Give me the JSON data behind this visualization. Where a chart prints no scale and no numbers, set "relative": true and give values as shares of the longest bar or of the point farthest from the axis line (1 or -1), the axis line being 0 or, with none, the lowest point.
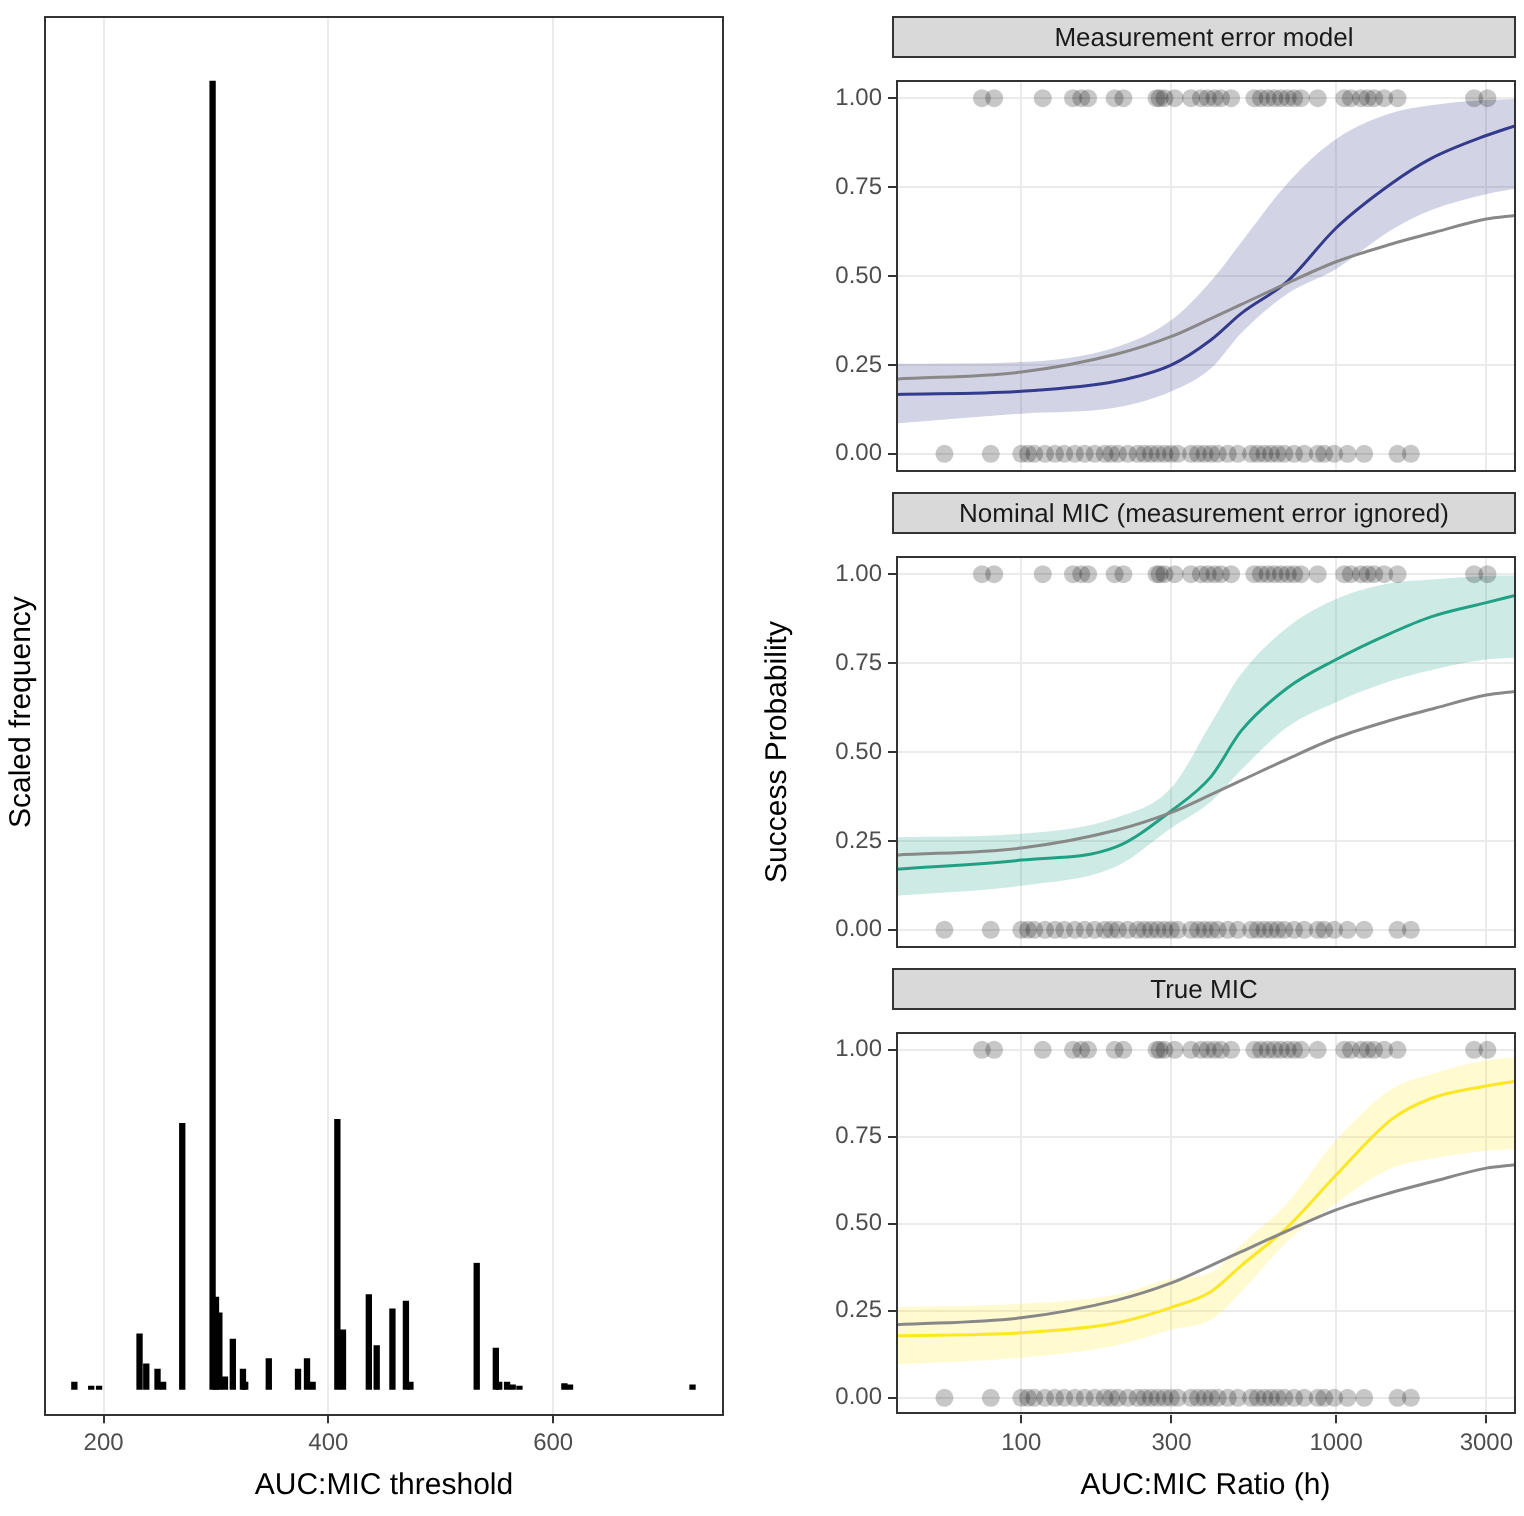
{
  "chart_data": [
    {
      "type": "bar",
      "xlabel": "AUC:MIC threshold",
      "ylabel": "Scaled frequency",
      "relative": true,
      "color": "#000000",
      "grid": "x",
      "xlim": [
        147,
        752
      ],
      "xticks": [
        200,
        400,
        600
      ],
      "x": [
        174,
        189,
        196,
        232,
        238,
        248,
        253,
        270,
        297,
        300,
        303,
        308,
        315,
        324,
        326,
        347,
        373,
        381,
        386,
        408,
        413,
        436,
        443,
        457,
        469,
        473,
        532,
        549,
        552,
        559,
        564,
        570,
        610,
        615,
        724
      ],
      "values": [
        0.005,
        0.002,
        0.002,
        0.042,
        0.019,
        0.015,
        0.005,
        0.203,
        1,
        0.07,
        0.058,
        0.009,
        0.038,
        0.015,
        0.005,
        0.023,
        0.015,
        0.023,
        0.005,
        0.206,
        0.045,
        0.072,
        0.033,
        0.061,
        0.067,
        0.005,
        0.096,
        0.031,
        0.005,
        0.005,
        0.003,
        0.002,
        0.004,
        0.003,
        0.003
      ]
    },
    {
      "type": "line",
      "title": "Measurement error model",
      "log": "x",
      "grid": true,
      "tick_labels": "y",
      "xlim": [
        40,
        3700
      ],
      "ylim": [
        -0.05,
        1.05
      ],
      "xticks": [
        100,
        300,
        1000,
        3000
      ],
      "yticks": [
        {
          "value": 0,
          "label": "0.00"
        },
        {
          "value": 0.25,
          "label": "0.25"
        },
        {
          "value": 0.5,
          "label": "0.50"
        },
        {
          "value": 0.75,
          "label": "0.75"
        },
        {
          "value": 1,
          "label": "1.00"
        }
      ],
      "x": [
        40,
        100,
        200,
        300,
        400,
        500,
        700,
        1000,
        1500,
        2000,
        3000,
        3700
      ],
      "series": [
        {
          "type": "scatter",
          "color": "#000000",
          "x": [
            75,
            82,
            117,
            146,
            155,
            163,
            198,
            211,
            269,
            275,
            285,
            307,
            346,
            372,
            391,
            411,
            431,
            464,
            550,
            577,
            606,
            637,
            668,
            702,
            736,
            773,
            874,
            1061,
            1114,
            1199,
            1259,
            1321,
            1421,
            1567,
            2743,
            3024,
            57,
            80,
            100,
            105,
            110,
            119,
            128,
            137,
            148,
            159,
            171,
            184,
            193,
            203,
            218,
            234,
            246,
            258,
            271,
            285,
            299,
            314,
            346,
            364,
            382,
            401,
            421,
            453,
            487,
            537,
            563,
            592,
            621,
            652,
            685,
            736,
            792,
            874,
            917,
            986,
            1087,
            1228,
            1567,
            1728
          ],
          "values": [
            1,
            1,
            1,
            1,
            1,
            1,
            1,
            1,
            1,
            1,
            1,
            1,
            1,
            1,
            1,
            1,
            1,
            1,
            1,
            1,
            1,
            1,
            1,
            1,
            1,
            1,
            1,
            1,
            1,
            1,
            1,
            1,
            1,
            1,
            1,
            1,
            0,
            0,
            0,
            0,
            0,
            0,
            0,
            0,
            0,
            0,
            0,
            0,
            0,
            0,
            0,
            0,
            0,
            0,
            0,
            0,
            0,
            0,
            0,
            0,
            0,
            0,
            0,
            0,
            0,
            0,
            0,
            0,
            0,
            0,
            0,
            0,
            0,
            0,
            0,
            0,
            0,
            0,
            0,
            0
          ]
        },
        {
          "type": "line",
          "color": "#888888",
          "values": [
            0.21,
            0.23,
            0.28,
            0.33,
            0.38,
            0.42,
            0.48,
            0.54,
            0.59,
            0.62,
            0.66,
            0.67
          ]
        },
        {
          "type": "line",
          "color": "#343a8c",
          "values": [
            0.167,
            0.176,
            0.204,
            0.25,
            0.32,
            0.395,
            0.485,
            0.635,
            0.76,
            0.83,
            0.895,
            0.922
          ],
          "lower": [
            0.085,
            0.113,
            0.13,
            0.176,
            0.24,
            0.34,
            0.45,
            0.52,
            0.63,
            0.685,
            0.73,
            0.745
          ],
          "upper": [
            0.253,
            0.258,
            0.3,
            0.376,
            0.485,
            0.595,
            0.76,
            0.885,
            0.958,
            0.98,
            0.995,
            0.998
          ]
        }
      ]
    },
    {
      "type": "line",
      "title": "Nominal MIC (measurement error ignored)",
      "ylabel": "Success Probability",
      "log": "x",
      "grid": true,
      "tick_labels": "y",
      "xlim": [
        40,
        3700
      ],
      "ylim": [
        -0.05,
        1.05
      ],
      "xticks": [
        100,
        300,
        1000,
        3000
      ],
      "yticks": [
        {
          "value": 0,
          "label": "0.00"
        },
        {
          "value": 0.25,
          "label": "0.25"
        },
        {
          "value": 0.5,
          "label": "0.50"
        },
        {
          "value": 0.75,
          "label": "0.75"
        },
        {
          "value": 1,
          "label": "1.00"
        }
      ],
      "x": [
        40,
        100,
        200,
        300,
        400,
        500,
        700,
        1000,
        1500,
        2000,
        3000,
        3700
      ],
      "series": [
        {
          "type": "scatter",
          "color": "#000000",
          "x": [
            75,
            82,
            117,
            146,
            155,
            163,
            198,
            211,
            269,
            275,
            285,
            307,
            346,
            372,
            391,
            411,
            431,
            464,
            550,
            577,
            606,
            637,
            668,
            702,
            736,
            773,
            874,
            1061,
            1114,
            1199,
            1259,
            1321,
            1421,
            1567,
            2743,
            3024,
            57,
            80,
            100,
            105,
            110,
            119,
            128,
            137,
            148,
            159,
            171,
            184,
            193,
            203,
            218,
            234,
            246,
            258,
            271,
            285,
            299,
            314,
            346,
            364,
            382,
            401,
            421,
            453,
            487,
            537,
            563,
            592,
            621,
            652,
            685,
            736,
            792,
            874,
            917,
            986,
            1087,
            1228,
            1567,
            1728
          ],
          "values": [
            1,
            1,
            1,
            1,
            1,
            1,
            1,
            1,
            1,
            1,
            1,
            1,
            1,
            1,
            1,
            1,
            1,
            1,
            1,
            1,
            1,
            1,
            1,
            1,
            1,
            1,
            1,
            1,
            1,
            1,
            1,
            1,
            1,
            1,
            1,
            1,
            0,
            0,
            0,
            0,
            0,
            0,
            0,
            0,
            0,
            0,
            0,
            0,
            0,
            0,
            0,
            0,
            0,
            0,
            0,
            0,
            0,
            0,
            0,
            0,
            0,
            0,
            0,
            0,
            0,
            0,
            0,
            0,
            0,
            0,
            0,
            0,
            0,
            0,
            0,
            0,
            0,
            0,
            0,
            0
          ]
        },
        {
          "type": "line",
          "color": "#888888",
          "values": [
            0.21,
            0.23,
            0.28,
            0.33,
            0.38,
            0.42,
            0.48,
            0.54,
            0.59,
            0.62,
            0.66,
            0.67
          ]
        },
        {
          "type": "line",
          "color": "#21a184",
          "values": [
            0.17,
            0.196,
            0.233,
            0.335,
            0.43,
            0.56,
            0.68,
            0.76,
            0.835,
            0.88,
            0.92,
            0.94
          ],
          "lower": [
            0.096,
            0.124,
            0.178,
            0.287,
            0.36,
            0.45,
            0.57,
            0.64,
            0.7,
            0.73,
            0.76,
            0.765
          ],
          "upper": [
            0.26,
            0.27,
            0.315,
            0.4,
            0.58,
            0.72,
            0.85,
            0.93,
            0.975,
            0.985,
            0.995,
            0.996
          ]
        }
      ]
    },
    {
      "type": "line",
      "title": "True MIC",
      "xlabel": "AUC:MIC Ratio (h)",
      "log": "x",
      "grid": true,
      "xlim": [
        40,
        3700
      ],
      "ylim": [
        -0.05,
        1.05
      ],
      "xticks": [
        100,
        300,
        1000,
        3000
      ],
      "yticks": [
        {
          "value": 0,
          "label": "0.00"
        },
        {
          "value": 0.25,
          "label": "0.25"
        },
        {
          "value": 0.5,
          "label": "0.50"
        },
        {
          "value": 0.75,
          "label": "0.75"
        },
        {
          "value": 1,
          "label": "1.00"
        }
      ],
      "x": [
        40,
        100,
        200,
        300,
        400,
        500,
        700,
        1000,
        1500,
        2000,
        3000,
        3700
      ],
      "series": [
        {
          "type": "scatter",
          "color": "#000000",
          "x": [
            75,
            82,
            117,
            146,
            155,
            163,
            198,
            211,
            269,
            275,
            285,
            307,
            346,
            372,
            391,
            411,
            431,
            464,
            550,
            577,
            606,
            637,
            668,
            702,
            736,
            773,
            874,
            1061,
            1114,
            1199,
            1259,
            1321,
            1421,
            1567,
            2743,
            3024,
            57,
            80,
            100,
            105,
            110,
            119,
            128,
            137,
            148,
            159,
            171,
            184,
            193,
            203,
            218,
            234,
            246,
            258,
            271,
            285,
            299,
            314,
            346,
            364,
            382,
            401,
            421,
            453,
            487,
            537,
            563,
            592,
            621,
            652,
            685,
            736,
            792,
            874,
            917,
            986,
            1087,
            1228,
            1567,
            1728
          ],
          "values": [
            1,
            1,
            1,
            1,
            1,
            1,
            1,
            1,
            1,
            1,
            1,
            1,
            1,
            1,
            1,
            1,
            1,
            1,
            1,
            1,
            1,
            1,
            1,
            1,
            1,
            1,
            1,
            1,
            1,
            1,
            1,
            1,
            1,
            1,
            1,
            1,
            0,
            0,
            0,
            0,
            0,
            0,
            0,
            0,
            0,
            0,
            0,
            0,
            0,
            0,
            0,
            0,
            0,
            0,
            0,
            0,
            0,
            0,
            0,
            0,
            0,
            0,
            0,
            0,
            0,
            0,
            0,
            0,
            0,
            0,
            0,
            0,
            0,
            0,
            0,
            0,
            0,
            0,
            0,
            0
          ]
        },
        {
          "type": "line",
          "color": "#888888",
          "values": [
            0.21,
            0.23,
            0.28,
            0.33,
            0.38,
            0.42,
            0.48,
            0.54,
            0.59,
            0.62,
            0.66,
            0.67
          ]
        },
        {
          "type": "line",
          "color": "#fde725",
          "values": [
            0.178,
            0.187,
            0.215,
            0.26,
            0.305,
            0.38,
            0.49,
            0.64,
            0.8,
            0.86,
            0.896,
            0.91
          ],
          "lower": [
            0.096,
            0.115,
            0.15,
            0.196,
            0.224,
            0.305,
            0.45,
            0.56,
            0.66,
            0.687,
            0.71,
            0.715
          ],
          "upper": [
            0.26,
            0.27,
            0.296,
            0.342,
            0.36,
            0.44,
            0.56,
            0.74,
            0.887,
            0.93,
            0.97,
            0.978
          ]
        }
      ]
    }
  ]
}
